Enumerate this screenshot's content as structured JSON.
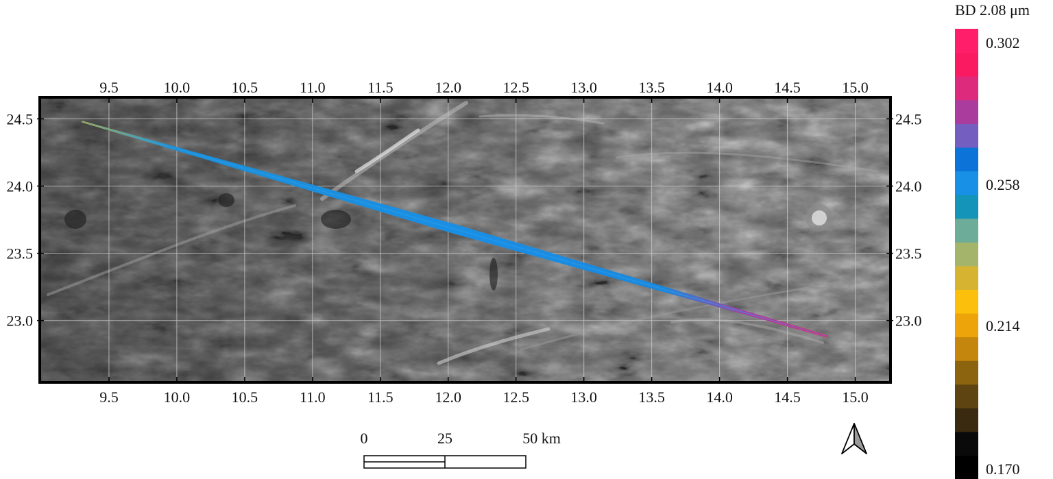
{
  "map": {
    "x_ticks": [
      "9.5",
      "10.0",
      "10.5",
      "11.0",
      "11.5",
      "12.0",
      "12.5",
      "13.0",
      "13.5",
      "14.0",
      "14.5",
      "15.0"
    ],
    "y_ticks": [
      "24.5",
      "24.0",
      "23.5",
      "23.0"
    ],
    "x_range": [
      9.0,
      15.25
    ],
    "y_range": [
      22.55,
      24.65
    ],
    "track": {
      "start": [
        9.3,
        24.48
      ],
      "end": [
        14.8,
        22.88
      ]
    }
  },
  "scale_bar": {
    "labels": [
      "0",
      "25",
      "50 km"
    ]
  },
  "north_arrow": {
    "icon": "north-arrow-icon"
  },
  "legend": {
    "title": "BD 2.08 μm",
    "min": 0.17,
    "max": 0.302,
    "labels": [
      "0.302",
      "0.258",
      "0.214",
      "0.170"
    ],
    "colors": [
      "#000000",
      "#0a0a0a",
      "#3a2a10",
      "#5e4410",
      "#8c6410",
      "#c4860c",
      "#eca40a",
      "#fcc00c",
      "#d6b432",
      "#a4b46a",
      "#6cac98",
      "#1494b8",
      "#1890e6",
      "#0c74d8",
      "#745ec0",
      "#aa3c9e",
      "#de2a7c",
      "#fa1a62",
      "#ff1e6a"
    ]
  }
}
